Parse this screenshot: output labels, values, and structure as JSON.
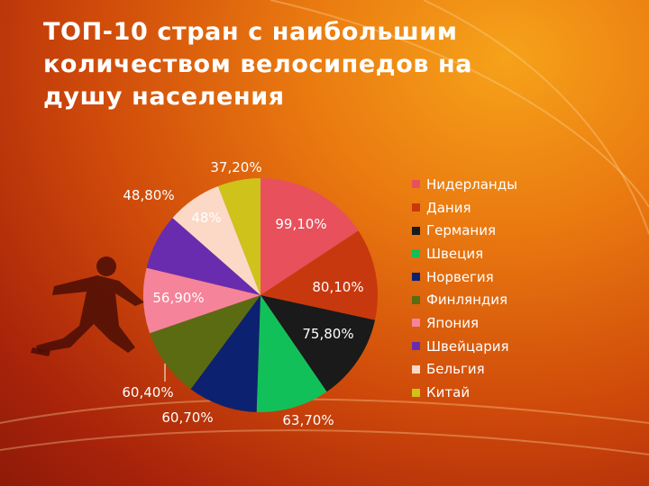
{
  "title": "ТОП-10 стран с наибольшим количеством велосипедов на душу населения",
  "chart_data": {
    "type": "pie",
    "categories": [
      "Нидерланды",
      "Дания",
      "Германия",
      "Швеция",
      "Норвегия",
      "Финляндия",
      "Япония",
      "Швейцария",
      "Бельгия",
      "Китай"
    ],
    "values": [
      99.1,
      80.1,
      75.8,
      63.7,
      60.7,
      60.4,
      56.9,
      48.8,
      48,
      37.2
    ],
    "data_labels": [
      "99,10%",
      "80,10%",
      "75,80%",
      "63,70%",
      "60,70%",
      "60,40%",
      "56,90%",
      "48,80%",
      "48%",
      "37,20%"
    ],
    "colors": [
      "#e8505b",
      "#c8380e",
      "#1a1a1a",
      "#12c05a",
      "#0c2170",
      "#5b6b12",
      "#f5839a",
      "#6a2cae",
      "#fbd9c6",
      "#cfc21a"
    ],
    "legend_position": "right"
  },
  "legend": {
    "labels": [
      "Нидерланды",
      "Дания",
      "Германия",
      "Швеция",
      "Норвегия",
      "Финляндия",
      "Япония",
      "Швейцария",
      "Бельгия",
      "Китай"
    ]
  }
}
